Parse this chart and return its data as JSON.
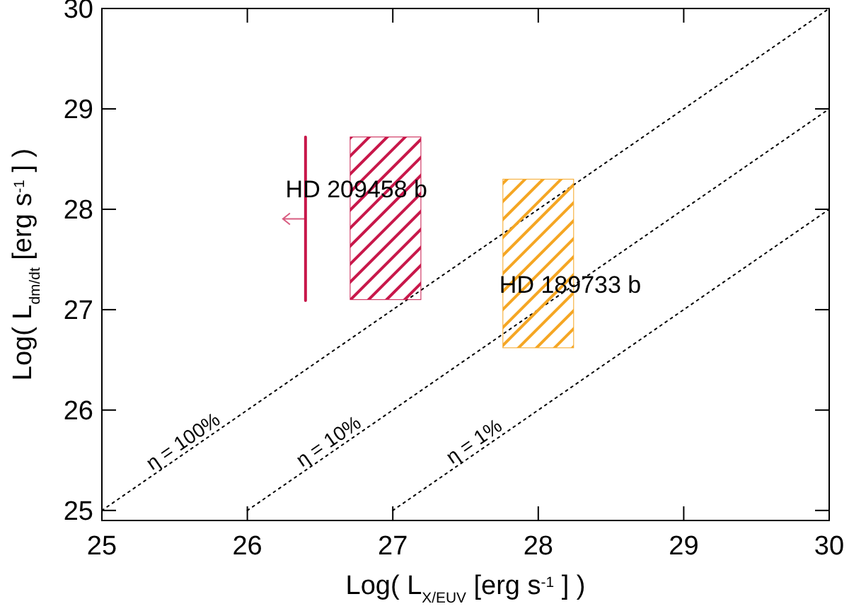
{
  "chart_data": {
    "type": "line",
    "xlabel": "Log( L$_{X/EUV}$ [erg s$^{-1}$] )",
    "ylabel": "Log( L$_{dm/dt}$ [erg s$^{-1}$] )",
    "xlim": [
      25,
      30
    ],
    "ylim": [
      24.9,
      30
    ],
    "xticks": [
      25,
      26,
      27,
      28,
      29,
      30
    ],
    "yticks": [
      25,
      26,
      27,
      28,
      29,
      30
    ],
    "grid": false,
    "legend": false,
    "series": [
      {
        "name": "η = 100%",
        "line_style": "dotted",
        "color": "#000000",
        "x": [
          25,
          30
        ],
        "values": [
          25,
          30
        ]
      },
      {
        "name": "η = 10%",
        "line_style": "dotted",
        "color": "#000000",
        "x": [
          26,
          30
        ],
        "values": [
          25,
          29
        ]
      },
      {
        "name": "η = 1%",
        "line_style": "dotted",
        "color": "#000000",
        "x": [
          27,
          30
        ],
        "values": [
          25,
          28
        ]
      },
      {
        "type": "bar",
        "color": "#c8174a",
        "x": [
          26.95
        ],
        "values": [
          1.62
        ],
        "base": [
          27.1
        ]
      },
      {
        "type": "bar",
        "color": "#f5a623",
        "x": [
          28.0
        ],
        "values": [
          1.68
        ],
        "base": [
          26.62
        ]
      },
      {
        "line_style": "solid",
        "color": "#c8174a",
        "x": [
          26.4,
          26.4
        ],
        "values": [
          27.09,
          28.72
        ]
      }
    ],
    "annotations": [
      {
        "text": "HD 209458 b",
        "x": 26.75,
        "y": 28.2
      },
      {
        "text": "HD 189733 b",
        "x": 28.22,
        "y": 27.25
      }
    ]
  }
}
